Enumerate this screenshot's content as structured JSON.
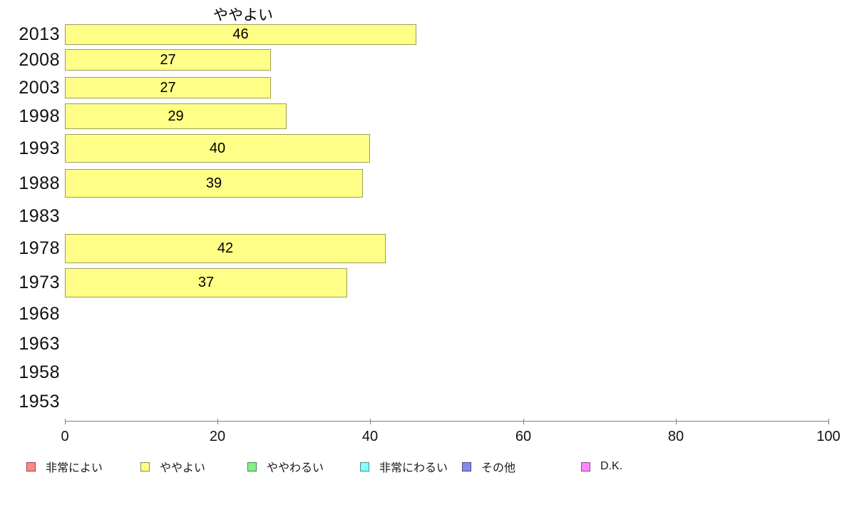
{
  "chart_data": {
    "type": "bar",
    "orientation": "horizontal",
    "title": "ややよい",
    "categories": [
      "2013",
      "2008",
      "2003",
      "1998",
      "1993",
      "1988",
      "1983",
      "1978",
      "1973",
      "1968",
      "1963",
      "1958",
      "1953"
    ],
    "values": [
      46,
      27,
      27,
      29,
      40,
      39,
      null,
      42,
      37,
      null,
      null,
      null,
      null
    ],
    "bar_color": "#ffff88",
    "value_labels_shown": true,
    "xlim": [
      0,
      100
    ],
    "x_ticks": [
      "0",
      "20",
      "40",
      "60",
      "80",
      "100"
    ],
    "grid": "off",
    "legend_position": "bottom",
    "legend": [
      {
        "label": "非常によい",
        "color": "#ff8888"
      },
      {
        "label": "ややよい",
        "color": "#ffff88"
      },
      {
        "label": "ややわるい",
        "color": "#88ee88"
      },
      {
        "label": "非常にわるい",
        "color": "#88ffff"
      },
      {
        "label": "その他",
        "color": "#8888ee"
      },
      {
        "label": "D.K.",
        "color": "#ff88ff"
      }
    ]
  }
}
